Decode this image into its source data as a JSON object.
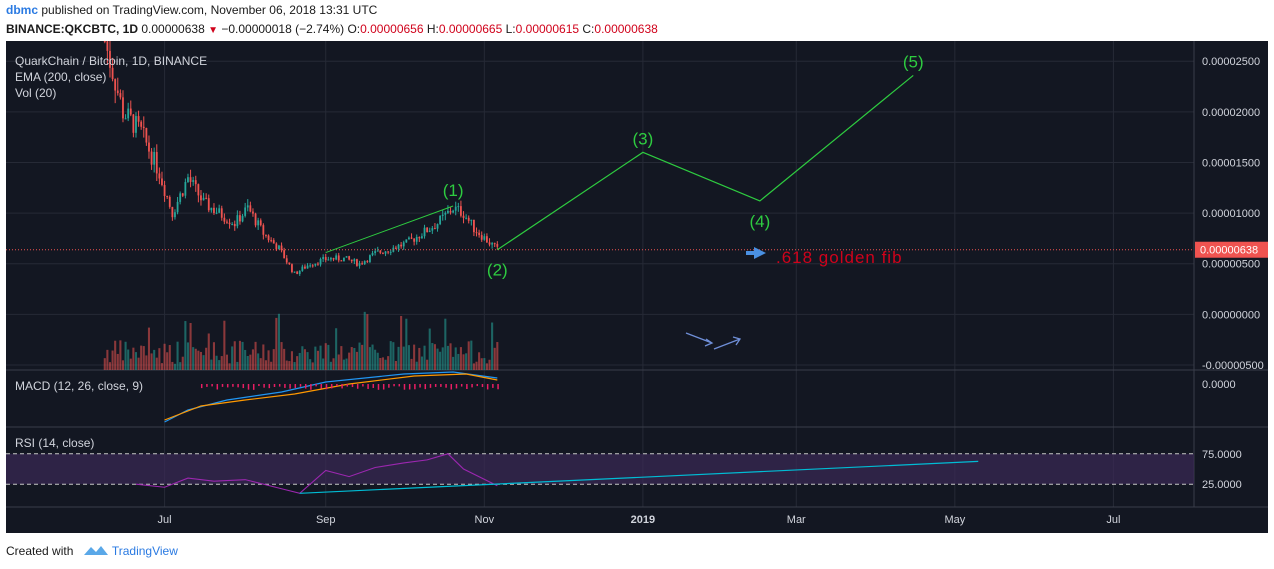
{
  "header": {
    "user": "dbmc",
    "published": "published on TradingView.com, November 06, 2018 13:31 UTC",
    "symbol_line": "BINANCE:QKCBTC, 1D",
    "last": "0.00000638",
    "change": "−0.00000018 (−2.74%)",
    "o_label": "O:",
    "o": "0.00000656",
    "h_label": "H:",
    "h": "0.00000665",
    "l_label": "L:",
    "l": "0.00000615",
    "c_label": "C:",
    "c": "0.00000638"
  },
  "legend": {
    "title": "QuarkChain / Bitcoin, 1D, BINANCE",
    "ema": "EMA (200, close)",
    "vol": "Vol (20)",
    "macd": "MACD (12, 26, close, 9)",
    "rsi": "RSI (14, close)"
  },
  "annotations": {
    "fib_text": ".618 golden fib",
    "waves": [
      "(1)",
      "(2)",
      "(3)",
      "(4)",
      "(5)"
    ]
  },
  "price_label": "0.00000638",
  "footer": {
    "created": "Created with",
    "brand": "TradingView"
  },
  "colors": {
    "bg": "#131722",
    "grid": "#262a36",
    "up": "#26a69a",
    "down": "#ef5350",
    "wave": "#2ecc40",
    "fib_text": "#d0021b",
    "rsi_band": "#3a2a55",
    "rsi_line": "#9c27b0",
    "macd_line": "#2196f3",
    "signal_line": "#ff9800",
    "trendline": "#00bcd4"
  },
  "chart_data": {
    "type": "candlestick",
    "y_axis_ticks": [
      "0.00002500",
      "0.00002000",
      "0.00001500",
      "0.00001000",
      "0.00000500",
      "0.00000000",
      "-0.00000500"
    ],
    "ylim": [
      -5.5e-06,
      2.7e-05
    ],
    "x_axis_ticks": [
      "Jul",
      "Sep",
      "Nov",
      "2019",
      "Mar",
      "May",
      "Jul"
    ],
    "price_path": [
      {
        "d": "2018-06-08",
        "p": 2.7e-05
      },
      {
        "d": "2018-06-15",
        "p": 2e-05
      },
      {
        "d": "2018-06-22",
        "p": 1.8e-05
      },
      {
        "d": "2018-06-29",
        "p": 1.4e-05
      },
      {
        "d": "2018-07-04",
        "p": 1e-05
      },
      {
        "d": "2018-07-10",
        "p": 1.35e-05
      },
      {
        "d": "2018-07-16",
        "p": 1.1e-05
      },
      {
        "d": "2018-07-22",
        "p": 1e-05
      },
      {
        "d": "2018-07-28",
        "p": 9e-06
      },
      {
        "d": "2018-08-02",
        "p": 1.05e-05
      },
      {
        "d": "2018-08-08",
        "p": 8e-06
      },
      {
        "d": "2018-08-14",
        "p": 6.5e-06
      },
      {
        "d": "2018-08-20",
        "p": 4e-06
      },
      {
        "d": "2018-08-26",
        "p": 5e-06
      },
      {
        "d": "2018-09-02",
        "p": 5.5e-06
      },
      {
        "d": "2018-09-08",
        "p": 5.5e-06
      },
      {
        "d": "2018-09-14",
        "p": 5e-06
      },
      {
        "d": "2018-09-20",
        "p": 6e-06
      },
      {
        "d": "2018-09-26",
        "p": 6.5e-06
      },
      {
        "d": "2018-10-02",
        "p": 7e-06
      },
      {
        "d": "2018-10-08",
        "p": 8e-06
      },
      {
        "d": "2018-10-14",
        "p": 9e-06
      },
      {
        "d": "2018-10-20",
        "p": 1.05e-05
      },
      {
        "d": "2018-10-24",
        "p": 1e-05
      },
      {
        "d": "2018-10-28",
        "p": 8.5e-06
      },
      {
        "d": "2018-11-06",
        "p": 6.38e-06
      }
    ],
    "current_price": 6.38e-06,
    "wave_projection": [
      {
        "label": "(2)",
        "d": "2018-11-06",
        "p": 6.38e-06
      },
      {
        "label": "(3)",
        "d": "2019-01-01",
        "p": 1.6e-05
      },
      {
        "label": "(4)",
        "d": "2019-02-15",
        "p": 1.12e-05
      },
      {
        "label": "(5)",
        "d": "2019-04-15",
        "p": 2.36e-05
      }
    ],
    "wave1_line": [
      {
        "d": "2018-09-01",
        "p": 6.1e-06
      },
      {
        "d": "2018-10-20",
        "p": 1.07e-05
      }
    ],
    "macd_axis_ticks": [
      "0.0000"
    ],
    "rsi_axis_ticks": [
      "75.0000",
      "25.0000"
    ],
    "rsi_levels": [
      70,
      30
    ],
    "rsi_path": [
      {
        "d": "2018-06-20",
        "v": 30
      },
      {
        "d": "2018-07-01",
        "v": 26
      },
      {
        "d": "2018-07-10",
        "v": 38
      },
      {
        "d": "2018-07-20",
        "v": 34
      },
      {
        "d": "2018-08-01",
        "v": 36
      },
      {
        "d": "2018-08-15",
        "v": 24
      },
      {
        "d": "2018-08-22",
        "v": 18
      },
      {
        "d": "2018-09-01",
        "v": 48
      },
      {
        "d": "2018-09-10",
        "v": 40
      },
      {
        "d": "2018-09-20",
        "v": 52
      },
      {
        "d": "2018-10-01",
        "v": 58
      },
      {
        "d": "2018-10-10",
        "v": 62
      },
      {
        "d": "2018-10-18",
        "v": 70
      },
      {
        "d": "2018-10-24",
        "v": 50
      },
      {
        "d": "2018-11-06",
        "v": 28
      }
    ],
    "rsi_trendline": [
      {
        "d": "2018-08-22",
        "v": 18
      },
      {
        "d": "2019-05-10",
        "v": 60
      }
    ]
  }
}
